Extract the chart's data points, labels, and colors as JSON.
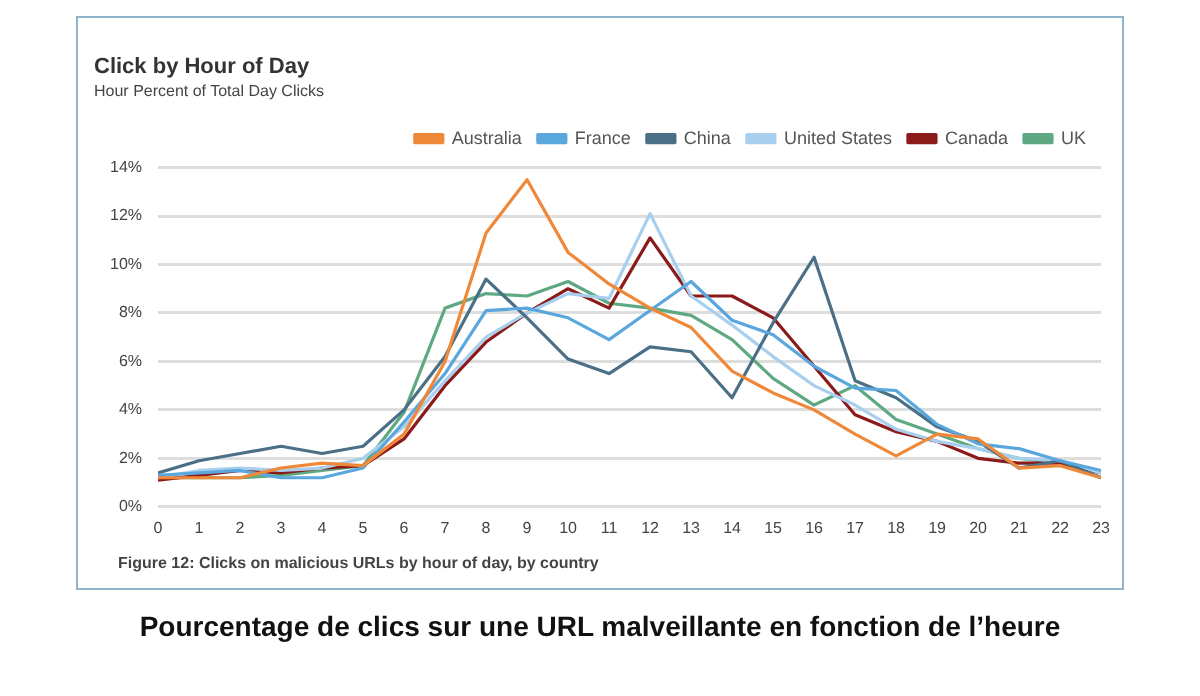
{
  "chart_data": {
    "type": "line",
    "title": "Click by Hour of Day",
    "subtitle": "Hour Percent of Total Day Clicks",
    "x": [
      0,
      1,
      2,
      3,
      4,
      5,
      6,
      7,
      8,
      9,
      10,
      11,
      12,
      13,
      14,
      15,
      16,
      17,
      18,
      19,
      20,
      21,
      22,
      23
    ],
    "xlim": [
      0,
      23
    ],
    "xticks": [
      0,
      1,
      2,
      3,
      4,
      5,
      6,
      7,
      8,
      9,
      10,
      11,
      12,
      13,
      14,
      15,
      16,
      17,
      18,
      19,
      20,
      21,
      22,
      23
    ],
    "series": [
      {
        "name": "Australia",
        "color": "#f0883a",
        "values": [
          1.2,
          1.2,
          1.2,
          1.6,
          1.8,
          1.7,
          3.0,
          6.0,
          11.3,
          13.5,
          10.5,
          9.2,
          8.2,
          7.4,
          5.6,
          4.7,
          4.0,
          3.0,
          2.1,
          3.0,
          2.8,
          1.6,
          1.7,
          1.2
        ]
      },
      {
        "name": "France",
        "color": "#5aa7dd",
        "values": [
          1.3,
          1.4,
          1.5,
          1.2,
          1.2,
          1.6,
          3.5,
          5.5,
          8.1,
          8.2,
          7.8,
          6.9,
          8.1,
          9.3,
          7.7,
          7.1,
          5.8,
          4.9,
          4.8,
          3.4,
          2.6,
          2.4,
          1.9,
          1.5
        ]
      },
      {
        "name": "China",
        "color": "#4a6f86",
        "values": [
          1.4,
          1.9,
          2.2,
          2.5,
          2.2,
          2.5,
          4.0,
          6.2,
          9.4,
          7.8,
          6.1,
          5.5,
          6.6,
          6.4,
          4.5,
          7.6,
          10.3,
          5.2,
          4.5,
          3.3,
          2.7,
          1.6,
          1.9,
          1.2
        ]
      },
      {
        "name": "United States",
        "color": "#a9cfee",
        "values": [
          1.2,
          1.5,
          1.6,
          1.5,
          1.6,
          2.0,
          3.3,
          5.2,
          7.0,
          8.0,
          8.8,
          8.6,
          12.1,
          8.7,
          7.5,
          6.2,
          5.0,
          4.2,
          3.2,
          2.7,
          2.4,
          2.0,
          1.9,
          1.4
        ]
      },
      {
        "name": "Canada",
        "color": "#8b1a1a",
        "values": [
          1.1,
          1.3,
          1.5,
          1.4,
          1.6,
          1.7,
          2.8,
          5.0,
          6.8,
          8.0,
          9.0,
          8.2,
          11.1,
          8.7,
          8.7,
          7.8,
          5.8,
          3.8,
          3.1,
          2.7,
          2.0,
          1.8,
          1.8,
          1.4
        ]
      },
      {
        "name": "UK",
        "color": "#5ea882",
        "values": [
          1.2,
          1.2,
          1.2,
          1.3,
          1.5,
          1.7,
          3.9,
          8.2,
          8.8,
          8.7,
          9.3,
          8.4,
          8.2,
          7.9,
          6.9,
          5.3,
          4.2,
          5.0,
          3.6,
          3.0,
          2.4,
          2.0,
          1.8,
          1.2
        ]
      }
    ],
    "ylim": [
      0,
      14
    ],
    "yticks": [
      {
        "value": 0,
        "label": "0%"
      },
      {
        "value": 2,
        "label": "2%"
      },
      {
        "value": 4,
        "label": "4%"
      },
      {
        "value": 6,
        "label": "6%"
      },
      {
        "value": 8,
        "label": "8%"
      },
      {
        "value": 10,
        "label": "10%"
      },
      {
        "value": 12,
        "label": "12%"
      },
      {
        "value": 14,
        "label": "14%"
      }
    ],
    "grid": "y",
    "legend": "top right",
    "marker": "none",
    "line_style": "solid",
    "annotations": [
      "Figure 12: Clicks on malicious URLs by hour of day, by country",
      "Pourcentage de clics sur une URL malveillante en fonction de l’heure"
    ]
  }
}
